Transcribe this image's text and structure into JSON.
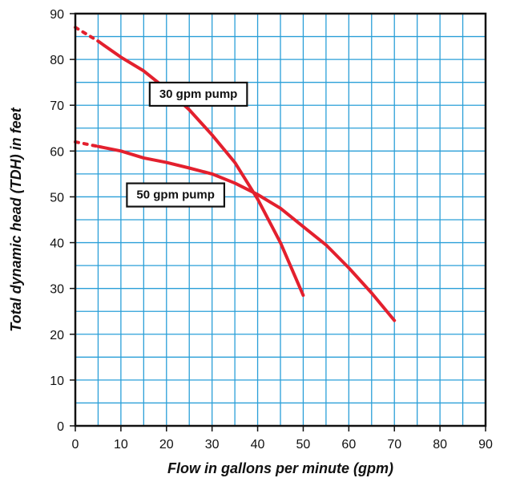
{
  "chart_data": {
    "type": "line",
    "xlabel": "Flow in gallons per minute (gpm)",
    "ylabel": "Total dynamic head (TDH) in feet",
    "xlim": [
      0,
      90
    ],
    "ylim": [
      0,
      90
    ],
    "x_ticks": [
      "0",
      "10",
      "20",
      "30",
      "40",
      "50",
      "60",
      "70",
      "80",
      "90"
    ],
    "y_ticks": [
      "0",
      "10",
      "20",
      "30",
      "40",
      "50",
      "60",
      "70",
      "80",
      "90"
    ],
    "grid": true,
    "minor_grid_step": 5,
    "colors": {
      "grid": "#2a9fd8",
      "series": "#e3202e",
      "border": "#111111"
    },
    "series": [
      {
        "name": "30 gpm pump",
        "dashed_start": [
          [
            0,
            87
          ],
          [
            5,
            84
          ]
        ],
        "points": [
          [
            5,
            84
          ],
          [
            10,
            80.5
          ],
          [
            15,
            77.5
          ],
          [
            20,
            73.5
          ],
          [
            25,
            69
          ],
          [
            30,
            63.5
          ],
          [
            35,
            57.5
          ],
          [
            40,
            49.5
          ],
          [
            45,
            40
          ],
          [
            50,
            28.5
          ]
        ]
      },
      {
        "name": "50 gpm pump",
        "dashed_start": [
          [
            0,
            62
          ],
          [
            5,
            61
          ]
        ],
        "points": [
          [
            5,
            61
          ],
          [
            10,
            60
          ],
          [
            15,
            58.5
          ],
          [
            20,
            57.5
          ],
          [
            25,
            56.3
          ],
          [
            30,
            55
          ],
          [
            35,
            53
          ],
          [
            40,
            50.5
          ],
          [
            45,
            47.5
          ],
          [
            50,
            43.5
          ],
          [
            55,
            39.5
          ],
          [
            60,
            34.5
          ],
          [
            65,
            29
          ],
          [
            70,
            23
          ]
        ]
      }
    ],
    "annotations": [
      {
        "text": "30 gpm pump",
        "x": 27,
        "y": 72.5,
        "target": "30 gpm pump"
      },
      {
        "text": "50 gpm pump",
        "x": 22,
        "y": 50.5,
        "target": "50 gpm pump"
      }
    ]
  }
}
